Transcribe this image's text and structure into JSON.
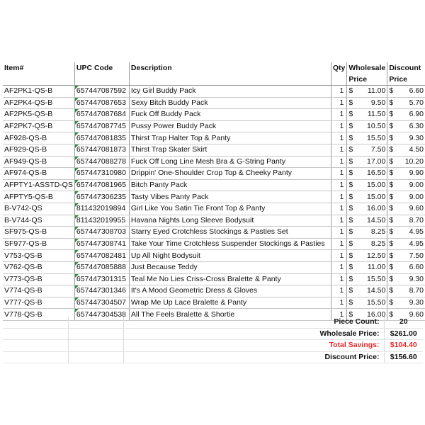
{
  "headers": {
    "item": "Item#",
    "upc": "UPC Code",
    "description": "Description",
    "qty": "Qty",
    "wholesale": "Wholesale Price",
    "discount": "Discount Price"
  },
  "currency_symbol": "$",
  "rows": [
    {
      "item": "AF2PK1-QS-B",
      "upc": "657447087592",
      "description": "Icy Girl Buddy Pack",
      "qty": "1",
      "wholesale": "11.00",
      "discount": "6.60"
    },
    {
      "item": "AF2PK4-QS-B",
      "upc": "657447087653",
      "description": "Sexy Bitch Buddy Pack",
      "qty": "1",
      "wholesale": "9.50",
      "discount": "5.70"
    },
    {
      "item": "AF2PK5-QS-B",
      "upc": "657447087684",
      "description": "Fuck Off Buddy Pack",
      "qty": "1",
      "wholesale": "11.50",
      "discount": "6.90"
    },
    {
      "item": "AF2PK7-QS-B",
      "upc": "657447087745",
      "description": "Pussy Power Buddy Pack",
      "qty": "1",
      "wholesale": "10.50",
      "discount": "6.30"
    },
    {
      "item": "AF928-QS-B",
      "upc": "657447081835",
      "description": "Thirst Trap Halter Top & Panty",
      "qty": "1",
      "wholesale": "15.50",
      "discount": "9.30"
    },
    {
      "item": "AF929-QS-B",
      "upc": "657447081873",
      "description": "Thirst Trap Skater Skirt",
      "qty": "1",
      "wholesale": "7.50",
      "discount": "4.50"
    },
    {
      "item": "AF949-QS-B",
      "upc": "657447088278",
      "description": "Fuck Off Long Line Mesh Bra & G-String Panty",
      "qty": "1",
      "wholesale": "17.00",
      "discount": "10.20"
    },
    {
      "item": "AF974-QS-B",
      "upc": "657447310980",
      "description": "Drippin' One-Shoulder Crop Top & Cheeky Panty",
      "qty": "1",
      "wholesale": "16.50",
      "discount": "9.90"
    },
    {
      "item": "AFPTY1-ASSTD-QS",
      "upc": "657447081965",
      "description": "Bitch Panty Pack",
      "qty": "1",
      "wholesale": "15.00",
      "discount": "9.00"
    },
    {
      "item": "AFPTY5-QS-B",
      "upc": "657447306235",
      "description": "Tasty Vibes Panty Pack",
      "qty": "1",
      "wholesale": "15.00",
      "discount": "9.00"
    },
    {
      "item": "B-V742-QS",
      "upc": "811432019894",
      "description": "Girl Like You Satin Tie Front Top & Panty",
      "qty": "1",
      "wholesale": "16.00",
      "discount": "9.60"
    },
    {
      "item": "B-V744-QS",
      "upc": "811432019955",
      "description": "Havana Nights Long Sleeve Bodysuit",
      "qty": "1",
      "wholesale": "14.50",
      "discount": "8.70"
    },
    {
      "item": "SF975-QS-B",
      "upc": "657447308703",
      "description": "Starry Eyed Crotchless Stockings & Pasties Set",
      "qty": "1",
      "wholesale": "8.25",
      "discount": "4.95"
    },
    {
      "item": "SF977-QS-B",
      "upc": "657447308741",
      "description": "Take Your Time Crotchless Suspender Stockings & Pasties",
      "qty": "1",
      "wholesale": "8.25",
      "discount": "4.95"
    },
    {
      "item": "V753-QS-B",
      "upc": "657447082481",
      "description": "Up All Night Bodysuit",
      "qty": "1",
      "wholesale": "12.50",
      "discount": "7.50"
    },
    {
      "item": "V762-QS-B",
      "upc": "657447085888",
      "description": "Just Because Teddy",
      "qty": "1",
      "wholesale": "11.00",
      "discount": "6.60"
    },
    {
      "item": "V773-QS-B",
      "upc": "657447301315",
      "description": "Teal Me No Lies Criss-Cross Bralette & Panty",
      "qty": "1",
      "wholesale": "15.50",
      "discount": "9.30"
    },
    {
      "item": "V774-QS-B",
      "upc": "657447301346",
      "description": "It's A Mood Geometric Dress & Gloves",
      "qty": "1",
      "wholesale": "14.50",
      "discount": "8.70"
    },
    {
      "item": "V777-QS-B",
      "upc": "657447304507",
      "description": "Wrap Me Up Lace Bralette & Panty",
      "qty": "1",
      "wholesale": "15.50",
      "discount": "9.30"
    },
    {
      "item": "V778-QS-B",
      "upc": "657447304538",
      "description": "All The Feels Bralette & Shortie",
      "qty": "1",
      "wholesale": "16.00",
      "discount": "9.60"
    }
  ],
  "summary": [
    {
      "label": "Piece Count:",
      "value": "20"
    },
    {
      "label": "Wholesale Price:",
      "value": "$261.00"
    },
    {
      "label": "Total Savings:",
      "value": "$104.40",
      "color": "#e8282a"
    },
    {
      "label": "Discount Price:",
      "value": "$156.60"
    }
  ]
}
